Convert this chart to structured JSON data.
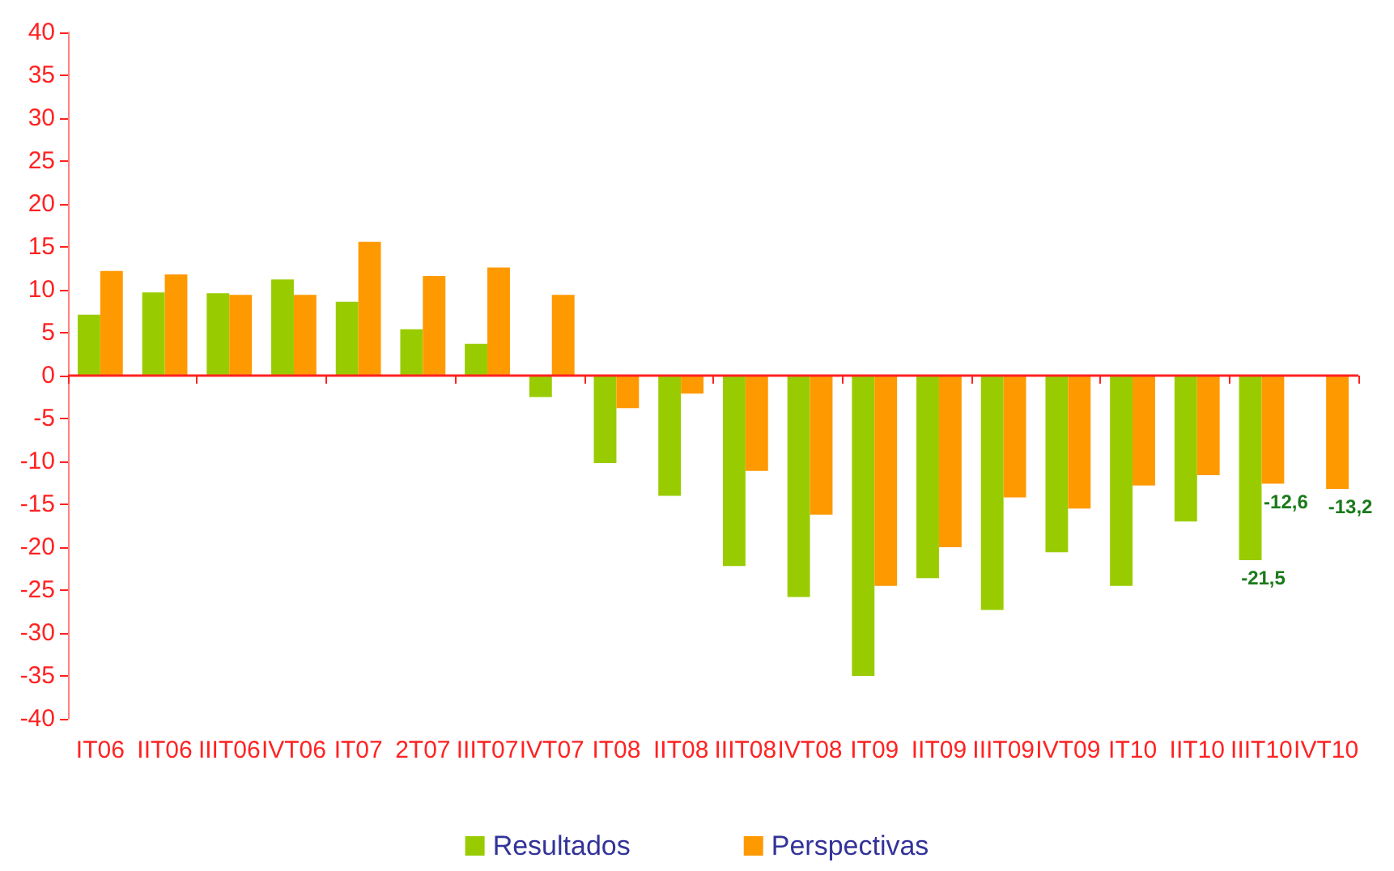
{
  "chart_data": {
    "type": "bar",
    "categories": [
      "IT06",
      "IIT06",
      "IIIT06",
      "IVT06",
      "IT07",
      "2T07",
      "IIIT07",
      "IVT07",
      "IT08",
      "IIT08",
      "IIIT08",
      "IVT08",
      "IT09",
      "IIT09",
      "IIIT09",
      "IVT09",
      "IT10",
      "IIT10",
      "IIIT10",
      "IVT10"
    ],
    "series": [
      {
        "name": "Resultados",
        "color": "#99cc00",
        "values": [
          7.1,
          9.7,
          9.6,
          11.2,
          8.6,
          5.4,
          3.7,
          -2.5,
          -10.2,
          -14.0,
          -22.2,
          -25.8,
          -35.0,
          -23.6,
          -27.3,
          -20.6,
          -24.5,
          -17.0,
          -21.5,
          null
        ],
        "value_labels": [
          null,
          null,
          null,
          null,
          null,
          null,
          null,
          null,
          null,
          null,
          null,
          null,
          null,
          null,
          null,
          null,
          null,
          null,
          "-21,5",
          null
        ]
      },
      {
        "name": "Perspectivas",
        "color": "#ff9900",
        "values": [
          12.2,
          11.8,
          9.4,
          9.4,
          15.6,
          11.6,
          12.6,
          9.4,
          -3.8,
          -2.1,
          -11.1,
          -16.2,
          -24.5,
          -20.0,
          -14.2,
          -15.5,
          -12.8,
          -11.6,
          -12.6,
          -13.2
        ],
        "value_labels": [
          null,
          null,
          null,
          null,
          null,
          null,
          null,
          null,
          null,
          null,
          null,
          null,
          null,
          null,
          null,
          null,
          null,
          null,
          "-12,6",
          "-13,2"
        ]
      }
    ],
    "ylim": [
      -40,
      40
    ],
    "yticks": [
      -40,
      -35,
      -30,
      -25,
      -20,
      -15,
      -10,
      -5,
      0,
      5,
      10,
      15,
      20,
      25,
      30,
      35,
      40
    ],
    "ref_lines": [
      {
        "axis": "y",
        "value": 0,
        "color": "#ff2222"
      }
    ],
    "grid": false,
    "legend": "bottom"
  }
}
